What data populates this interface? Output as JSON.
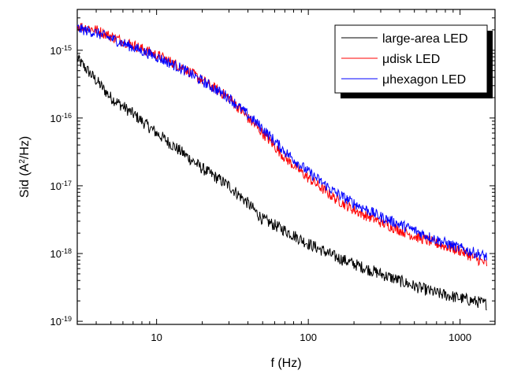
{
  "chart_data": {
    "type": "line",
    "xlabel": "f (Hz)",
    "ylabel": "Sid (A²/Hz)",
    "ylabel_parts": {
      "prefix": "Sid (A",
      "sup": "2",
      "suffix": "/Hz)"
    },
    "x_scale": "log",
    "y_scale": "log",
    "xlim": [
      3,
      1700
    ],
    "ylim": [
      9e-20,
      4e-15
    ],
    "x_ticks": [
      {
        "value": 10,
        "label": "10"
      },
      {
        "value": 100,
        "label": "100"
      },
      {
        "value": 1000,
        "label": "1000"
      }
    ],
    "y_ticks": [
      {
        "value": 1e-19,
        "base": "10",
        "exp": "-19"
      },
      {
        "value": 1e-18,
        "base": "10",
        "exp": "-18"
      },
      {
        "value": 1e-17,
        "base": "10",
        "exp": "-17"
      },
      {
        "value": 1e-16,
        "base": "10",
        "exp": "-16"
      },
      {
        "value": 1e-15,
        "base": "10",
        "exp": "-15"
      }
    ],
    "grid": false,
    "legend_position": "top-right",
    "series": [
      {
        "name": "large-area LED",
        "color": "#000000",
        "x": [
          3,
          4,
          5,
          7,
          10,
          15,
          20,
          30,
          40,
          50,
          70,
          100,
          150,
          200,
          300,
          500,
          700,
          1000,
          1500
        ],
        "y": [
          7.5e-16,
          3.6e-16,
          2e-16,
          1.15e-16,
          6e-17,
          3e-17,
          1.8e-17,
          1e-17,
          5.5e-18,
          3.2e-18,
          2.2e-18,
          1.4e-18,
          9e-19,
          7e-19,
          5e-19,
          3.3e-19,
          2.6e-19,
          2.2e-19,
          1.8e-19
        ],
        "noise": 0.09
      },
      {
        "name": "μdisk LED",
        "color": "#ff0000",
        "x": [
          3,
          4,
          5,
          7,
          10,
          15,
          20,
          30,
          40,
          50,
          70,
          100,
          150,
          200,
          300,
          500,
          700,
          1000,
          1500
        ],
        "y": [
          2.3e-15,
          2e-15,
          1.6e-15,
          1.2e-15,
          8.5e-16,
          5.5e-16,
          3.6e-16,
          2e-16,
          1e-16,
          6e-17,
          2.6e-17,
          1.3e-17,
          6.5e-18,
          4.4e-18,
          2.9e-18,
          1.8e-18,
          1.4e-18,
          1.1e-18,
          7e-19
        ],
        "noise": 0.08
      },
      {
        "name": "μhexagon LED",
        "color": "#0000ff",
        "x": [
          3,
          4,
          5,
          7,
          10,
          15,
          20,
          30,
          40,
          50,
          70,
          100,
          150,
          200,
          300,
          500,
          700,
          1000,
          1500
        ],
        "y": [
          2.1e-15,
          1.8e-15,
          1.5e-15,
          1.1e-15,
          8e-16,
          5.2e-16,
          3.5e-16,
          2e-16,
          1.1e-16,
          7e-17,
          3.2e-17,
          1.6e-17,
          8e-18,
          5.5e-18,
          3.5e-18,
          2.2e-18,
          1.6e-18,
          1.2e-18,
          9e-19
        ],
        "noise": 0.08
      }
    ]
  }
}
